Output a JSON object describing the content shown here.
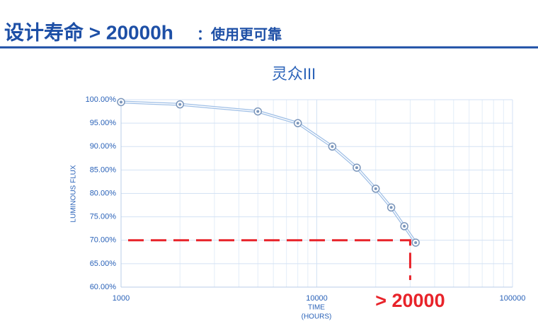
{
  "header": {
    "title": "设计寿命 > 20000h",
    "note": "：使用更可靠"
  },
  "chart_data": {
    "type": "line",
    "title": "灵众III",
    "ylabel": "LUMINOUS FLUX",
    "xlabel": [
      "TIME",
      "(HOURS)"
    ],
    "x": [
      1000,
      2000,
      5000,
      8000,
      12000,
      16000,
      20000,
      24000,
      28000,
      32000
    ],
    "series": [
      {
        "color": "#9fbfe6",
        "values": [
          99.5,
          99,
          97.5,
          95,
          90,
          85.5,
          81,
          77,
          73,
          69.5
        ]
      }
    ],
    "xlim": [
      1000,
      100000
    ],
    "xscale": "log",
    "xticks": [
      1000,
      10000,
      100000
    ],
    "x_minor_ticks": [
      2000,
      3000,
      4000,
      5000,
      6000,
      7000,
      8000,
      9000,
      20000,
      30000,
      40000,
      50000,
      60000,
      70000,
      80000,
      90000
    ],
    "ylim": [
      60,
      100
    ],
    "yticks": [
      {
        "value": 60,
        "label": "60.00%"
      },
      {
        "value": 65,
        "label": "65.00%"
      },
      {
        "value": 70,
        "label": "70.00%"
      },
      {
        "value": 75,
        "label": "75.00%"
      },
      {
        "value": 80,
        "label": "80.00%"
      },
      {
        "value": 85,
        "label": "85.00%"
      },
      {
        "value": 90,
        "label": "90.00%"
      },
      {
        "value": 95,
        "label": "95.00%"
      },
      {
        "value": 100,
        "label": "100.00%"
      }
    ],
    "grid": true,
    "threshold": {
      "x": 30000,
      "y": 70,
      "color": "#e8232a",
      "label": "> 20000"
    }
  }
}
